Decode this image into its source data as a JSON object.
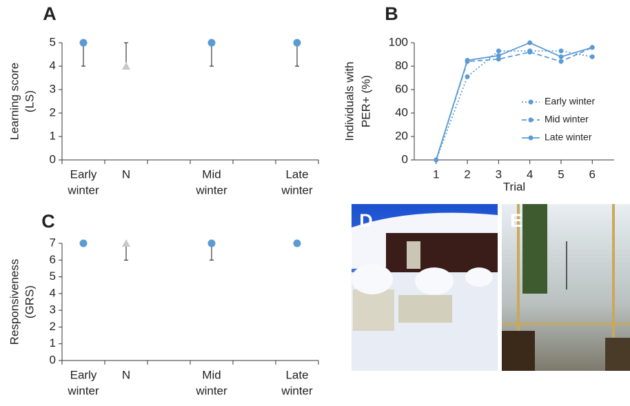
{
  "panels": [
    "A",
    "B",
    "C",
    "D",
    "E"
  ],
  "chart_data": [
    {
      "type": "dot",
      "categories": [
        [
          "Early",
          "winter"
        ],
        [
          "N"
        ],
        null,
        [
          "Mid",
          "winter"
        ],
        null,
        [
          "Late",
          "winter"
        ]
      ],
      "values": [
        5,
        4,
        null,
        5,
        null,
        5
      ],
      "ranges": [
        [
          4,
          5
        ],
        [
          4,
          5
        ],
        null,
        [
          4,
          5
        ],
        null,
        [
          4,
          5
        ]
      ],
      "markers": [
        "circle",
        "triangle",
        null,
        "circle",
        null,
        "circle"
      ],
      "colors": [
        "#5b9bd5",
        "#c8c8c8",
        null,
        "#5b9bd5",
        null,
        "#5b9bd5"
      ],
      "ylabel": [
        "Learning score",
        "(LS)"
      ],
      "ylim": [
        0,
        5
      ],
      "yticks": [
        0,
        1,
        2,
        3,
        4,
        5
      ]
    },
    {
      "type": "line",
      "x": [
        1,
        2,
        3,
        4,
        5,
        6
      ],
      "xlim": [
        0.3,
        6.7
      ],
      "xticks": [
        1,
        2,
        3,
        4,
        5,
        6
      ],
      "xlabel": "Trial",
      "ylabel": [
        "Individuals with",
        "PER+ (%)"
      ],
      "ylim": [
        0,
        100
      ],
      "yticks": [
        0,
        20,
        40,
        60,
        80,
        100
      ],
      "legend": "right",
      "series": [
        {
          "name": "Early winter",
          "color": "#5b9bd5",
          "dash": "dotted",
          "values": [
            0,
            71,
            93,
            93,
            93,
            88
          ]
        },
        {
          "name": "Mid winter",
          "color": "#5b9bd5",
          "dash": "dashed",
          "values": [
            0,
            84,
            86,
            92,
            84,
            96
          ]
        },
        {
          "name": "Late winter",
          "color": "#5b9bd5",
          "dash": "solid",
          "values": [
            0,
            85,
            89,
            100,
            88,
            96
          ]
        }
      ]
    },
    {
      "type": "dot",
      "categories": [
        [
          "Early",
          "winter"
        ],
        [
          "N"
        ],
        null,
        [
          "Mid",
          "winter"
        ],
        null,
        [
          "Late",
          "winter"
        ]
      ],
      "values": [
        7,
        7,
        null,
        7,
        null,
        7
      ],
      "ranges": [
        null,
        [
          6,
          7
        ],
        null,
        [
          6,
          7
        ],
        null,
        null
      ],
      "markers": [
        "circle",
        "triangle",
        null,
        "circle",
        null,
        "circle"
      ],
      "colors": [
        "#5b9bd5",
        "#c8c8c8",
        null,
        "#5b9bd5",
        null,
        "#5b9bd5"
      ],
      "ylabel": [
        "Responsiveness",
        "(GRS)"
      ],
      "ylim": [
        0,
        7
      ],
      "yticks": [
        0,
        1,
        2,
        3,
        4,
        5,
        6,
        7
      ]
    }
  ]
}
